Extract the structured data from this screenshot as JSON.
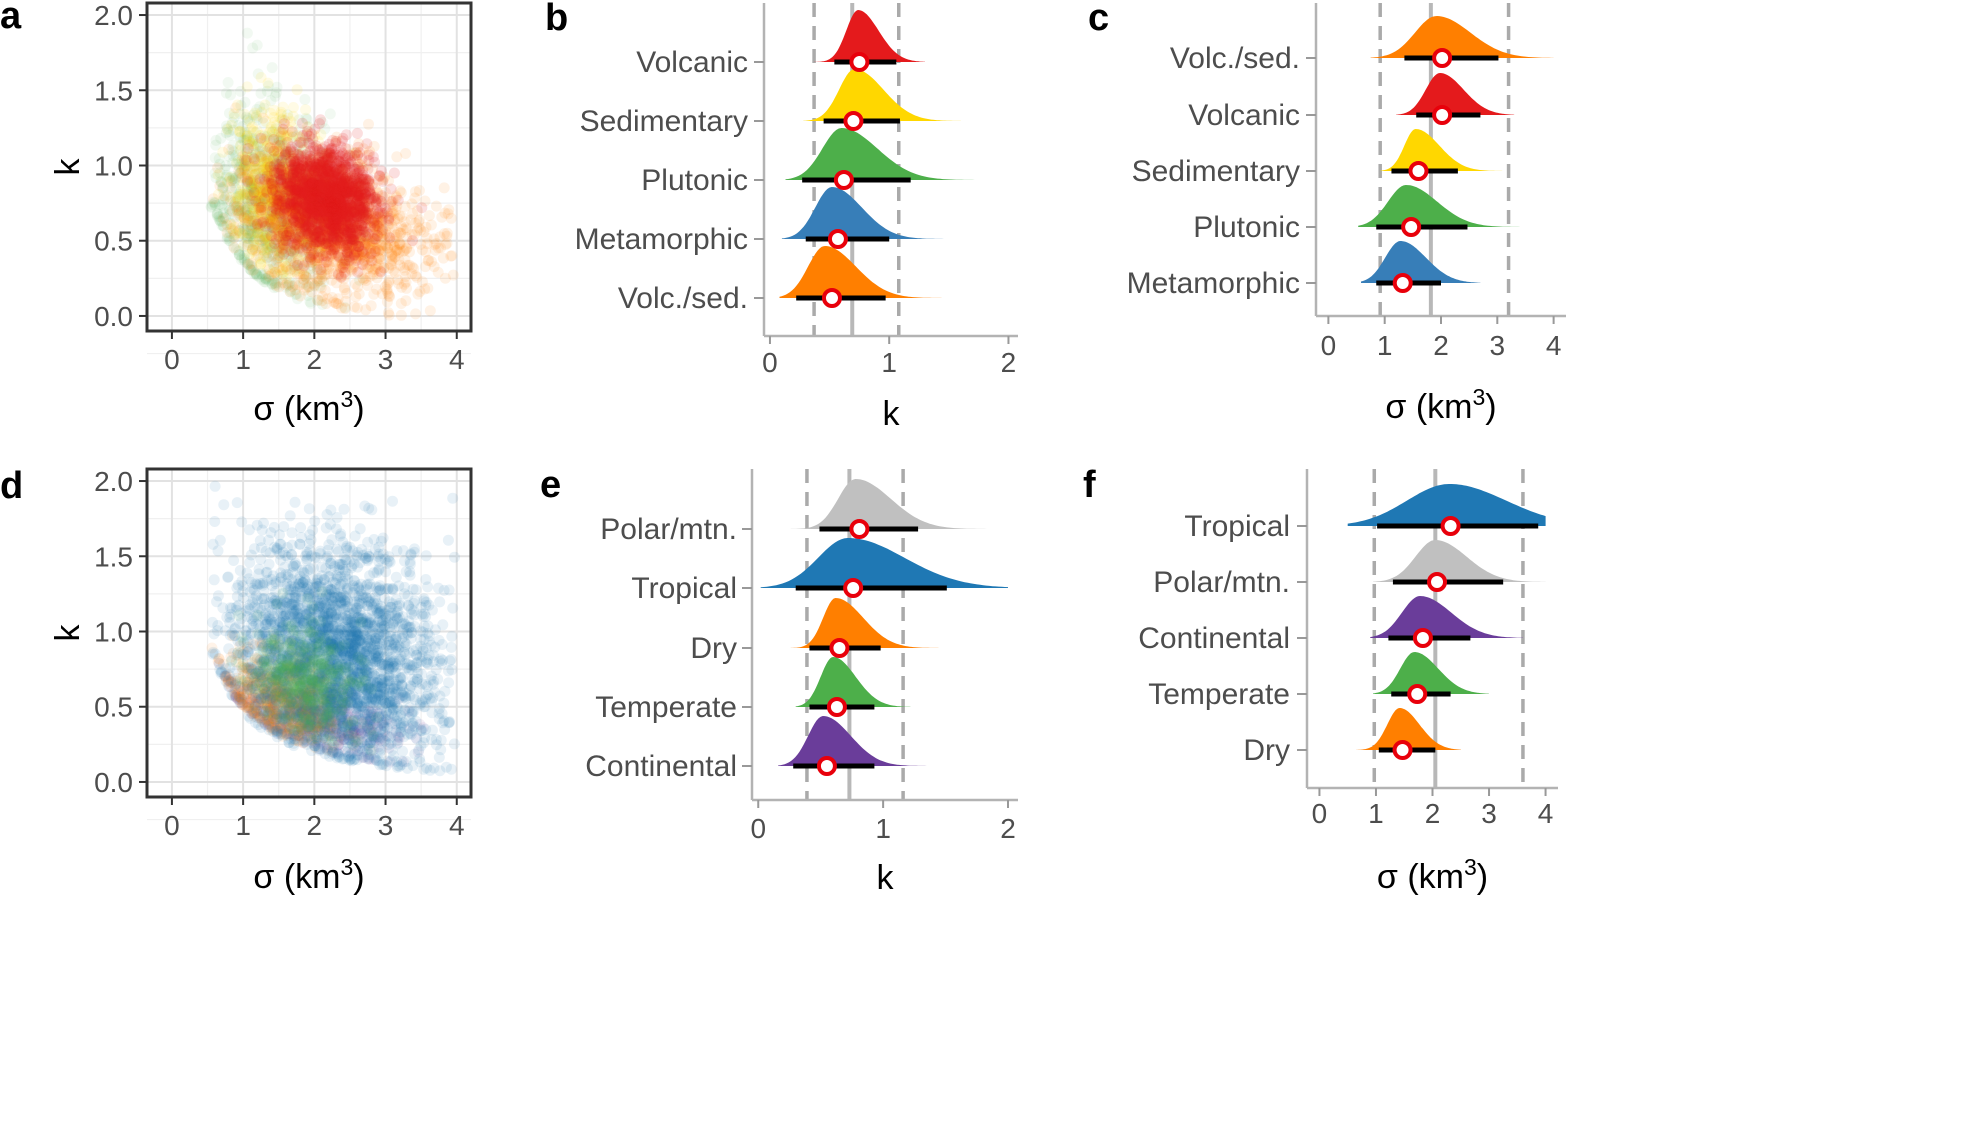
{
  "figure": {
    "colors": {
      "red": "#e41a1c",
      "yellow": "#ffd700",
      "green": "#4daf4a",
      "blue": "#377eb8",
      "orange": "#ff7f00",
      "gray": "#c0c0c0",
      "purple": "#6a3d9a",
      "trop_blue": "#1f78b4",
      "median_line": "#b8b8b8",
      "dashed": "#aaaaaa"
    }
  },
  "chart_data": [
    {
      "id": "a",
      "panel_label": "a",
      "type": "scatter",
      "xlabel": "σ (km",
      "xlabel_sup": "3",
      "xlabel_close": ")",
      "ylabel": "k",
      "xlim": [
        -0.35,
        4.2
      ],
      "ylim": [
        -0.1,
        2.08
      ],
      "xticks": [
        0,
        1,
        2,
        3,
        4
      ],
      "xtick_labels": [
        "0",
        "1",
        "2",
        "3",
        "4"
      ],
      "yticks": [
        0,
        0.5,
        1,
        1.5,
        2
      ],
      "ytick_labels": [
        "0.0",
        "0.5",
        "1.0",
        "1.5",
        "2.0"
      ],
      "clusters": [
        {
          "name": "Green",
          "color": "green",
          "cx": 1.3,
          "cy": 0.75,
          "sx": 0.45,
          "sy": 0.34,
          "n": 700,
          "opacity": 0.07,
          "ymin": 0.1
        },
        {
          "name": "Yellow",
          "color": "yellow",
          "cx": 1.4,
          "cy": 0.85,
          "sx": 0.28,
          "sy": 0.27,
          "n": 500,
          "opacity": 0.1,
          "ymin": 0.2
        },
        {
          "name": "Orange",
          "color": "orange",
          "cx": 2.25,
          "cy": 0.58,
          "sx": 0.65,
          "sy": 0.22,
          "n": 1300,
          "opacity": 0.1,
          "ymin": 0.12
        },
        {
          "name": "Red",
          "color": "red",
          "cx": 2.15,
          "cy": 0.78,
          "sx": 0.35,
          "sy": 0.17,
          "n": 1600,
          "opacity": 0.14,
          "ymin": 0.3
        }
      ]
    },
    {
      "id": "b",
      "panel_label": "b",
      "type": "ridgeline",
      "xlabel": "k",
      "xlim": [
        -0.05,
        2.08
      ],
      "xticks": [
        0,
        1,
        2
      ],
      "xtick_labels": [
        "0",
        "1",
        "2"
      ],
      "median_line": 0.69,
      "dashed_lines": [
        0.37,
        1.08
      ],
      "categories": [
        "Volcanic",
        "Sedimentary",
        "Plutonic",
        "Metamorphic",
        "Volc./sed."
      ],
      "series": [
        {
          "name": "Volcanic",
          "color": "red",
          "mode": 0.74,
          "sl": 0.1,
          "sr": 0.17,
          "lo": 0.37,
          "hi": 1.3,
          "point": 0.75,
          "bar": [
            0.54,
            1.06
          ]
        },
        {
          "name": "Sedimentary",
          "color": "yellow",
          "mode": 0.71,
          "sl": 0.13,
          "sr": 0.24,
          "lo": 0.28,
          "hi": 1.6,
          "point": 0.7,
          "bar": [
            0.45,
            1.09
          ]
        },
        {
          "name": "Plutonic",
          "color": "green",
          "mode": 0.6,
          "sl": 0.16,
          "sr": 0.3,
          "lo": 0.13,
          "hi": 1.92,
          "point": 0.62,
          "bar": [
            0.27,
            1.18
          ]
        },
        {
          "name": "Metamorphic",
          "color": "blue",
          "mode": 0.52,
          "sl": 0.14,
          "sr": 0.25,
          "lo": 0.1,
          "hi": 1.55,
          "point": 0.57,
          "bar": [
            0.3,
            1.0
          ]
        },
        {
          "name": "Volc./sed.",
          "color": "orange",
          "mode": 0.46,
          "sl": 0.14,
          "sr": 0.26,
          "lo": 0.08,
          "hi": 1.5,
          "point": 0.52,
          "bar": [
            0.22,
            0.97
          ]
        }
      ]
    },
    {
      "id": "c",
      "panel_label": "c",
      "type": "ridgeline",
      "xlabel": "σ (km",
      "xlabel_sup": "3",
      "xlabel_close": ")",
      "xlim": [
        -0.22,
        4.22
      ],
      "xticks": [
        0,
        1,
        2,
        3,
        4
      ],
      "xtick_labels": [
        "0",
        "1",
        "2",
        "3",
        "4"
      ],
      "median_line": 1.82,
      "dashed_lines": [
        0.92,
        3.2
      ],
      "categories": [
        "Volc./sed.",
        "Volcanic",
        "Sedimentary",
        "Plutonic",
        "Metamorphic"
      ],
      "series": [
        {
          "name": "Volc./sed.",
          "color": "orange",
          "mode": 1.92,
          "sl": 0.38,
          "sr": 0.6,
          "lo": 0.75,
          "hi": 4.0,
          "point": 2.02,
          "bar": [
            1.35,
            3.02
          ]
        },
        {
          "name": "Volcanic",
          "color": "red",
          "mode": 1.98,
          "sl": 0.25,
          "sr": 0.42,
          "lo": 1.2,
          "hi": 3.3,
          "point": 2.02,
          "bar": [
            1.56,
            2.7
          ]
        },
        {
          "name": "Sedimentary",
          "color": "yellow",
          "mode": 1.55,
          "sl": 0.2,
          "sr": 0.42,
          "lo": 0.92,
          "hi": 3.1,
          "point": 1.6,
          "bar": [
            1.12,
            2.3
          ]
        },
        {
          "name": "Plutonic",
          "color": "green",
          "mode": 1.38,
          "sl": 0.32,
          "sr": 0.55,
          "lo": 0.53,
          "hi": 3.6,
          "point": 1.47,
          "bar": [
            0.85,
            2.47
          ]
        },
        {
          "name": "Metamorphic",
          "color": "blue",
          "mode": 1.28,
          "sl": 0.27,
          "sr": 0.45,
          "lo": 0.58,
          "hi": 2.7,
          "point": 1.32,
          "bar": [
            0.85,
            2.0
          ]
        }
      ]
    },
    {
      "id": "d",
      "panel_label": "d",
      "type": "scatter",
      "xlabel": "σ (km",
      "xlabel_sup": "3",
      "xlabel_close": ")",
      "ylabel": "k",
      "xlim": [
        -0.35,
        4.2
      ],
      "ylim": [
        -0.1,
        2.08
      ],
      "xticks": [
        0,
        1,
        2,
        3,
        4
      ],
      "xtick_labels": [
        "0",
        "1",
        "2",
        "3",
        "4"
      ],
      "yticks": [
        0,
        0.5,
        1,
        1.5,
        2
      ],
      "ytick_labels": [
        "0.0",
        "0.5",
        "1.0",
        "1.5",
        "2.0"
      ],
      "clusters": [
        {
          "name": "Purple",
          "color": "purple",
          "cx": 2.0,
          "cy": 0.42,
          "sx": 0.55,
          "sy": 0.1,
          "n": 450,
          "opacity": 0.09,
          "ymin": 0.25
        },
        {
          "name": "Orange",
          "color": "orange",
          "cx": 1.5,
          "cy": 0.55,
          "sx": 0.4,
          "sy": 0.16,
          "n": 450,
          "opacity": 0.09,
          "ymin": 0.25
        },
        {
          "name": "Blue",
          "color": "trop_blue",
          "cx": 2.3,
          "cy": 0.85,
          "sx": 0.75,
          "sy": 0.35,
          "n": 2600,
          "opacity": 0.1,
          "ymin": 0.22
        },
        {
          "name": "Green",
          "color": "green",
          "cx": 1.85,
          "cy": 0.65,
          "sx": 0.38,
          "sy": 0.18,
          "n": 550,
          "opacity": 0.08,
          "ymin": 0.3
        }
      ]
    },
    {
      "id": "e",
      "panel_label": "e",
      "type": "ridgeline",
      "xlabel": "k",
      "xlim": [
        -0.05,
        2.08
      ],
      "xticks": [
        0,
        1,
        2
      ],
      "xtick_labels": [
        "0",
        "1",
        "2"
      ],
      "median_line": 0.73,
      "dashed_lines": [
        0.39,
        1.16
      ],
      "categories": [
        "Polar/mtn.",
        "Tropical",
        "Dry",
        "Temperate",
        "Continental"
      ],
      "series": [
        {
          "name": "Polar/mtn.",
          "color": "gray",
          "mode": 0.78,
          "sl": 0.14,
          "sr": 0.28,
          "lo": 0.26,
          "hi": 1.85,
          "point": 0.81,
          "bar": [
            0.49,
            1.28
          ]
        },
        {
          "name": "Tropical",
          "color": "trop_blue",
          "mode": 0.72,
          "sl": 0.24,
          "sr": 0.45,
          "lo": 0.02,
          "hi": 2.0,
          "point": 0.76,
          "bar": [
            0.3,
            1.51
          ]
        },
        {
          "name": "Dry",
          "color": "orange",
          "mode": 0.62,
          "sl": 0.1,
          "sr": 0.22,
          "lo": 0.26,
          "hi": 1.45,
          "point": 0.65,
          "bar": [
            0.41,
            0.98
          ]
        },
        {
          "name": "Temperate",
          "color": "green",
          "mode": 0.6,
          "sl": 0.1,
          "sr": 0.18,
          "lo": 0.3,
          "hi": 1.22,
          "point": 0.63,
          "bar": [
            0.41,
            0.93
          ]
        },
        {
          "name": "Continental",
          "color": "purple",
          "mode": 0.52,
          "sl": 0.12,
          "sr": 0.22,
          "lo": 0.16,
          "hi": 1.52,
          "point": 0.55,
          "bar": [
            0.28,
            0.93
          ]
        }
      ]
    },
    {
      "id": "f",
      "panel_label": "f",
      "type": "ridgeline",
      "xlabel": "σ (km",
      "xlabel_sup": "3",
      "xlabel_close": ")",
      "xlim": [
        -0.22,
        4.22
      ],
      "xticks": [
        0,
        1,
        2,
        3,
        4
      ],
      "xtick_labels": [
        "0",
        "1",
        "2",
        "3",
        "4"
      ],
      "median_line": 2.05,
      "dashed_lines": [
        0.97,
        3.6
      ],
      "categories": [
        "Tropical",
        "Polar/mtn.",
        "Continental",
        "Temperate",
        "Dry"
      ],
      "series": [
        {
          "name": "Tropical",
          "color": "trop_blue",
          "mode": 2.3,
          "sl": 0.75,
          "sr": 1.0,
          "lo": 0.5,
          "hi": 4.0,
          "point": 2.32,
          "bar": [
            1.02,
            3.87
          ]
        },
        {
          "name": "Polar/mtn.",
          "color": "gray",
          "mode": 2.05,
          "sl": 0.35,
          "sr": 0.55,
          "lo": 0.95,
          "hi": 4.0,
          "point": 2.08,
          "bar": [
            1.3,
            3.25
          ]
        },
        {
          "name": "Continental",
          "color": "purple",
          "mode": 1.78,
          "sl": 0.32,
          "sr": 0.55,
          "lo": 0.9,
          "hi": 3.6,
          "point": 1.83,
          "bar": [
            1.22,
            2.67
          ]
        },
        {
          "name": "Temperate",
          "color": "green",
          "mode": 1.68,
          "sl": 0.25,
          "sr": 0.42,
          "lo": 0.95,
          "hi": 3.0,
          "point": 1.73,
          "bar": [
            1.27,
            2.32
          ]
        },
        {
          "name": "Dry",
          "color": "orange",
          "mode": 1.42,
          "sl": 0.22,
          "sr": 0.35,
          "lo": 0.65,
          "hi": 2.5,
          "point": 1.47,
          "bar": [
            1.05,
            2.05
          ]
        }
      ]
    }
  ]
}
